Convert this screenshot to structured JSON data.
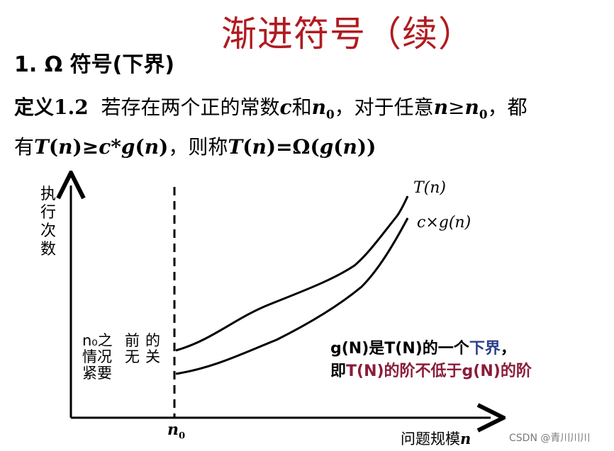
{
  "title": "渐进符号（续）",
  "subtitle": "1. Ω 符号(下界)",
  "definition": {
    "label": "定义1.2",
    "line1_a": "若存在两个正的常数",
    "c": "c",
    "he": "和",
    "n": "n",
    "zero": "0",
    "line1_b": "，对于任意",
    "ge": "≥",
    "line1_c": "，都",
    "line2_a": "有",
    "T": "T",
    "lp": "(",
    "rp": ")",
    "gec": "≥",
    "star": "*",
    "g": "g",
    "line2_b": "，则称",
    "eq_omega": "=Ω(",
    "close": ")"
  },
  "graph": {
    "ylabel": [
      "执",
      "行",
      "次",
      "数"
    ],
    "xlabel_text": "问题规模",
    "xlabel_var": "n",
    "n0_var": "n",
    "n0_sub": "0",
    "curve_upper": "T(n)",
    "curve_lower": "c×g(n)",
    "note_col1": [
      "n₀之",
      "情况",
      "紧要"
    ],
    "note_col2": [
      "前",
      "无",
      ""
    ],
    "note_col3": [
      "的",
      "关",
      ""
    ],
    "explain": {
      "l1_a": "g(N)是T(N)的一个",
      "l1_b": "下界",
      "l1_c": "，",
      "l2_a": "即",
      "l2_b": "T(N)的阶不低于g(N)的阶"
    }
  },
  "watermark": "CSDN @青川川川"
}
